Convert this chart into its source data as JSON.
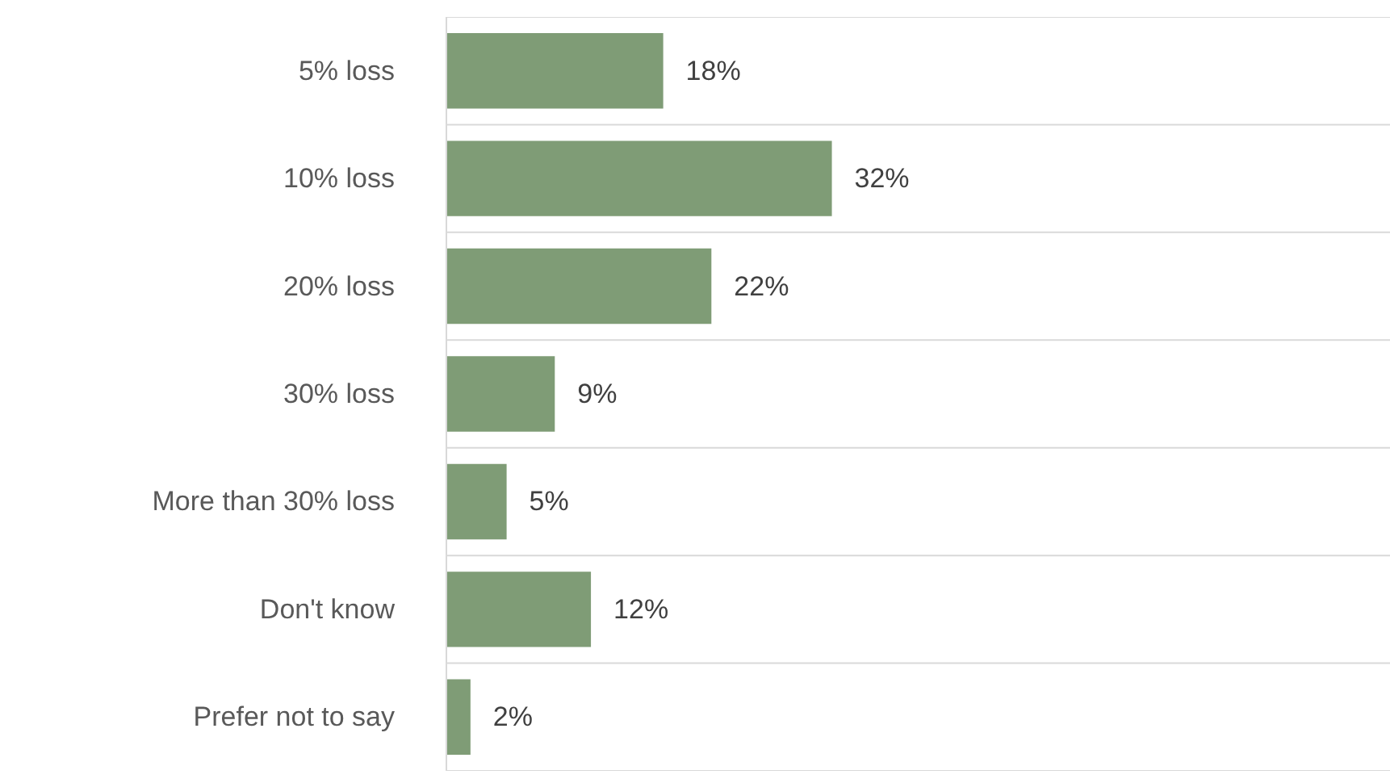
{
  "chart_data": {
    "type": "bar",
    "orientation": "horizontal",
    "categories": [
      "5% loss",
      "10% loss",
      "20% loss",
      "30% loss",
      "More than 30% loss",
      "Don't know",
      "Prefer not to say"
    ],
    "values": [
      18,
      32,
      22,
      9,
      5,
      12,
      2
    ],
    "value_labels": [
      "18%",
      "32%",
      "22%",
      "9%",
      "5%",
      "12%",
      "2%"
    ],
    "color": "#7f9c76",
    "grid": "y"
  }
}
